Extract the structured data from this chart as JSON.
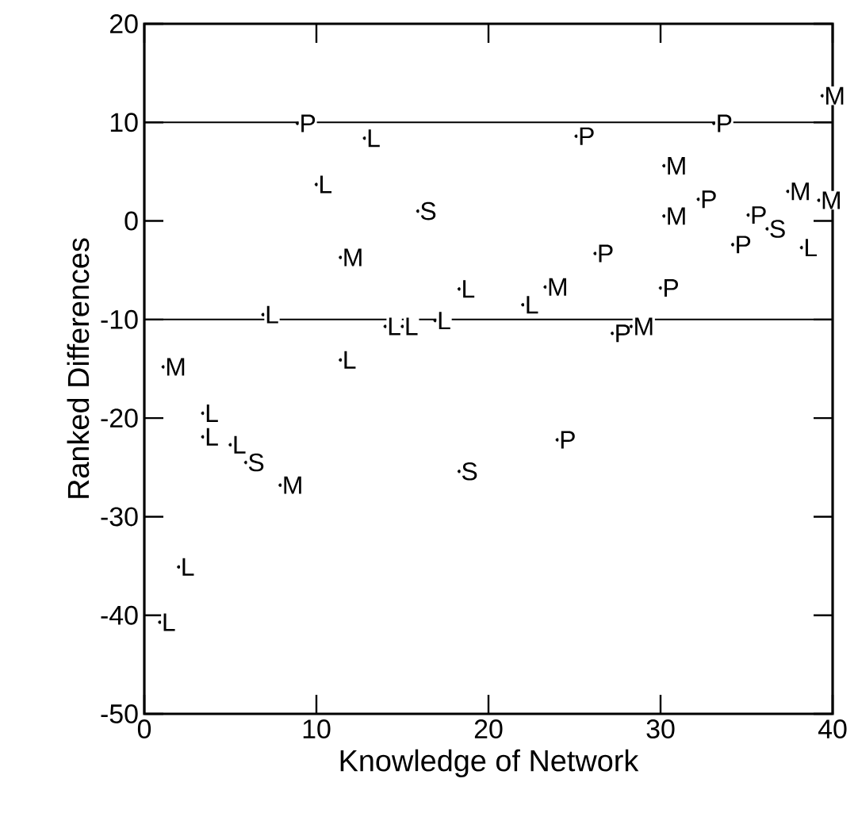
{
  "chart_data": {
    "type": "scatter",
    "xlabel": "Knowledge of Network",
    "ylabel": "Ranked Differences",
    "xlim": [
      0,
      40
    ],
    "ylim": [
      -50,
      20
    ],
    "xticks": [
      0,
      10,
      20,
      30,
      40
    ],
    "yticks": [
      -50,
      -40,
      -30,
      -20,
      -10,
      0,
      10,
      20
    ],
    "grid": false,
    "ref_lines": [
      {
        "axis": "y",
        "value": 10,
        "color": "#000000"
      },
      {
        "axis": "y",
        "value": -10,
        "color": "#000000"
      }
    ],
    "series": [
      {
        "name": "P",
        "color": "#000000",
        "x": [
          8.9,
          25.1,
          33.1,
          32.2,
          35.1,
          34.2,
          26.2,
          30.0,
          27.2,
          24.0
        ],
        "values": [
          9.9,
          8.6,
          9.9,
          2.2,
          0.6,
          -2.4,
          -3.3,
          -6.8,
          -11.4,
          -22.2
        ]
      },
      {
        "name": "L",
        "color": "#000000",
        "x": [
          12.8,
          10.0,
          18.3,
          6.9,
          14.0,
          15.0,
          16.9,
          11.4,
          22.0,
          38.2,
          3.4,
          3.4,
          5.0,
          2.0,
          0.9
        ],
        "values": [
          8.4,
          3.7,
          -6.9,
          -9.5,
          -10.7,
          -10.7,
          -10.1,
          -14.1,
          -8.5,
          -2.7,
          -19.5,
          -21.9,
          -22.7,
          -35.1,
          -40.7
        ]
      },
      {
        "name": "M",
        "color": "#000000",
        "x": [
          11.4,
          1.1,
          39.4,
          30.2,
          37.4,
          39.2,
          30.2,
          23.3,
          28.3,
          7.9
        ],
        "values": [
          -3.7,
          -14.8,
          12.7,
          5.6,
          3.0,
          2.1,
          0.5,
          -6.7,
          -10.7,
          -26.8
        ]
      },
      {
        "name": "S",
        "color": "#000000",
        "x": [
          15.9,
          36.2,
          5.9,
          18.3
        ],
        "values": [
          1.0,
          -0.8,
          -24.5,
          -25.4
        ]
      }
    ]
  }
}
